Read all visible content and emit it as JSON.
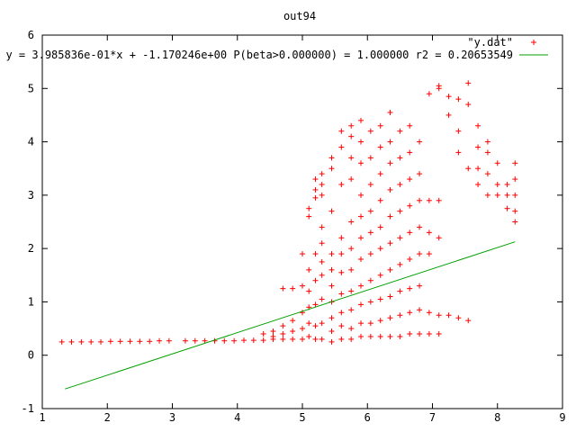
{
  "chart_data": {
    "type": "scatter",
    "title": "out94",
    "xlabel": "",
    "ylabel": "",
    "xlim": [
      1,
      9
    ],
    "ylim": [
      -1,
      6
    ],
    "xticks": [
      "1",
      "2",
      "3",
      "4",
      "5",
      "6",
      "7",
      "8",
      "9"
    ],
    "yticks": [
      "-1",
      "0",
      "1",
      "2",
      "3",
      "4",
      "5",
      "6"
    ],
    "grid": false,
    "legend_position": "top-right",
    "colors": {
      "points": "#ff0000",
      "fit": "#00a000",
      "axes": "#000000"
    },
    "series": [
      {
        "name": "\"y.dat\"",
        "kind": "points",
        "marker": "+",
        "columns": [
          {
            "x": 1.3,
            "y": [
              0.25
            ]
          },
          {
            "x": 1.45,
            "y": [
              0.25
            ]
          },
          {
            "x": 1.6,
            "y": [
              0.25
            ]
          },
          {
            "x": 1.75,
            "y": [
              0.25
            ]
          },
          {
            "x": 1.9,
            "y": [
              0.25
            ]
          },
          {
            "x": 2.05,
            "y": [
              0.26
            ]
          },
          {
            "x": 2.2,
            "y": [
              0.26
            ]
          },
          {
            "x": 2.35,
            "y": [
              0.26
            ]
          },
          {
            "x": 2.5,
            "y": [
              0.26
            ]
          },
          {
            "x": 2.65,
            "y": [
              0.26
            ]
          },
          {
            "x": 2.8,
            "y": [
              0.27
            ]
          },
          {
            "x": 2.95,
            "y": [
              0.27
            ]
          },
          {
            "x": 3.2,
            "y": [
              0.27
            ]
          },
          {
            "x": 3.35,
            "y": [
              0.27
            ]
          },
          {
            "x": 3.5,
            "y": [
              0.27
            ]
          },
          {
            "x": 3.65,
            "y": [
              0.27
            ]
          },
          {
            "x": 3.8,
            "y": [
              0.27
            ]
          },
          {
            "x": 3.95,
            "y": [
              0.27
            ]
          },
          {
            "x": 4.1,
            "y": [
              0.28
            ]
          },
          {
            "x": 4.25,
            "y": [
              0.28
            ]
          },
          {
            "x": 4.4,
            "y": [
              0.28,
              0.4
            ]
          },
          {
            "x": 4.55,
            "y": [
              0.3,
              0.35,
              0.45
            ]
          },
          {
            "x": 4.7,
            "y": [
              0.3,
              0.4,
              0.55,
              1.25
            ]
          },
          {
            "x": 4.85,
            "y": [
              0.3,
              0.45,
              0.65,
              1.25
            ]
          },
          {
            "x": 5.0,
            "y": [
              0.3,
              0.5,
              0.8,
              1.3,
              1.9
            ]
          },
          {
            "x": 5.1,
            "y": [
              0.35,
              0.6,
              0.9,
              1.2,
              1.6,
              2.6,
              2.75
            ]
          },
          {
            "x": 5.2,
            "y": [
              0.3,
              0.55,
              0.95,
              1.4,
              1.9,
              2.95,
              3.1,
              3.3
            ]
          },
          {
            "x": 5.3,
            "y": [
              0.3,
              0.6,
              1.05,
              1.5,
              1.75,
              2.1,
              2.4,
              3.0,
              3.2,
              3.4
            ]
          },
          {
            "x": 5.45,
            "y": [
              0.25,
              0.45,
              0.7,
              1.0,
              1.3,
              1.6,
              1.9,
              2.7,
              3.5,
              3.7
            ]
          },
          {
            "x": 5.6,
            "y": [
              0.3,
              0.55,
              0.8,
              1.15,
              1.55,
              1.9,
              2.2,
              3.2,
              3.9,
              4.2
            ]
          },
          {
            "x": 5.75,
            "y": [
              0.3,
              0.5,
              0.85,
              1.2,
              1.6,
              2.0,
              2.5,
              3.3,
              3.7,
              4.1,
              4.3
            ]
          },
          {
            "x": 5.9,
            "y": [
              0.35,
              0.6,
              0.95,
              1.3,
              1.8,
              2.2,
              2.6,
              3.0,
              3.6,
              4.0,
              4.4
            ]
          },
          {
            "x": 6.05,
            "y": [
              0.35,
              0.6,
              1.0,
              1.4,
              1.9,
              2.3,
              2.7,
              3.2,
              3.7,
              4.2
            ]
          },
          {
            "x": 6.2,
            "y": [
              0.35,
              0.65,
              1.05,
              1.5,
              2.0,
              2.4,
              2.9,
              3.4,
              3.9,
              4.3
            ]
          },
          {
            "x": 6.35,
            "y": [
              0.35,
              0.7,
              1.1,
              1.6,
              2.1,
              2.6,
              3.1,
              3.6,
              4.0,
              4.55
            ]
          },
          {
            "x": 6.5,
            "y": [
              0.35,
              0.75,
              1.2,
              1.7,
              2.2,
              2.7,
              3.2,
              3.7,
              4.2
            ]
          },
          {
            "x": 6.65,
            "y": [
              0.4,
              0.8,
              1.25,
              1.8,
              2.3,
              2.8,
              3.3,
              3.8,
              4.3
            ]
          },
          {
            "x": 6.8,
            "y": [
              0.4,
              0.85,
              1.3,
              1.9,
              2.4,
              2.9,
              3.4,
              4.0
            ]
          },
          {
            "x": 6.95,
            "y": [
              0.4,
              0.8,
              1.9,
              2.3,
              2.9,
              4.9
            ]
          },
          {
            "x": 7.1,
            "y": [
              0.4,
              0.75,
              2.2,
              2.9,
              5.0,
              5.05
            ]
          },
          {
            "x": 7.25,
            "y": [
              0.75,
              4.5,
              4.85
            ]
          },
          {
            "x": 7.4,
            "y": [
              0.7,
              3.8,
              4.2,
              4.8
            ]
          },
          {
            "x": 7.55,
            "y": [
              0.65,
              3.5,
              4.7,
              5.1
            ]
          },
          {
            "x": 7.7,
            "y": [
              3.2,
              3.5,
              3.9,
              4.3
            ]
          },
          {
            "x": 7.85,
            "y": [
              3.0,
              3.4,
              3.8,
              4.0
            ]
          },
          {
            "x": 8.0,
            "y": [
              3.0,
              3.2,
              3.6
            ]
          },
          {
            "x": 8.15,
            "y": [
              2.75,
              3.0,
              3.2
            ]
          },
          {
            "x": 8.27,
            "y": [
              2.5,
              2.7,
              3.0,
              3.3,
              3.6
            ]
          }
        ]
      },
      {
        "name": "y = 3.985836e-01*x + -1.170246e+00 P(beta)0.000000) = 1.000000 r2 = 0.20653549",
        "legend_label": "y = 3.985836e-01*x + -1.170246e+00 P(beta>0.000000) = 1.000000 r2 = 0.20653549",
        "kind": "line",
        "slope": 0.3985836,
        "intercept": -1.170246,
        "x_range": [
          1.35,
          8.27
        ]
      }
    ]
  }
}
